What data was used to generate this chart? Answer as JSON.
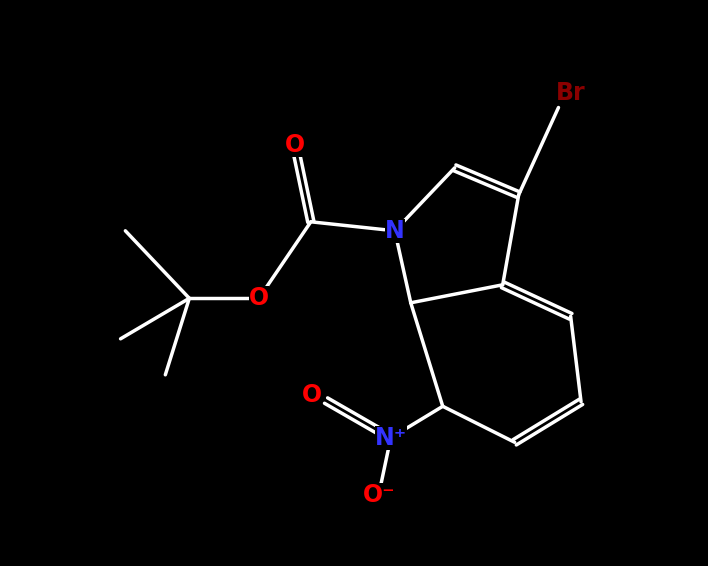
{
  "background_color": "#000000",
  "bond_color": "#ffffff",
  "bond_lw": 2.5,
  "dbo": 0.055,
  "figsize": [
    7.08,
    5.66
  ],
  "dpi": 100,
  "xlim": [
    -1,
    11
  ],
  "ylim": [
    -0.5,
    9.5
  ]
}
